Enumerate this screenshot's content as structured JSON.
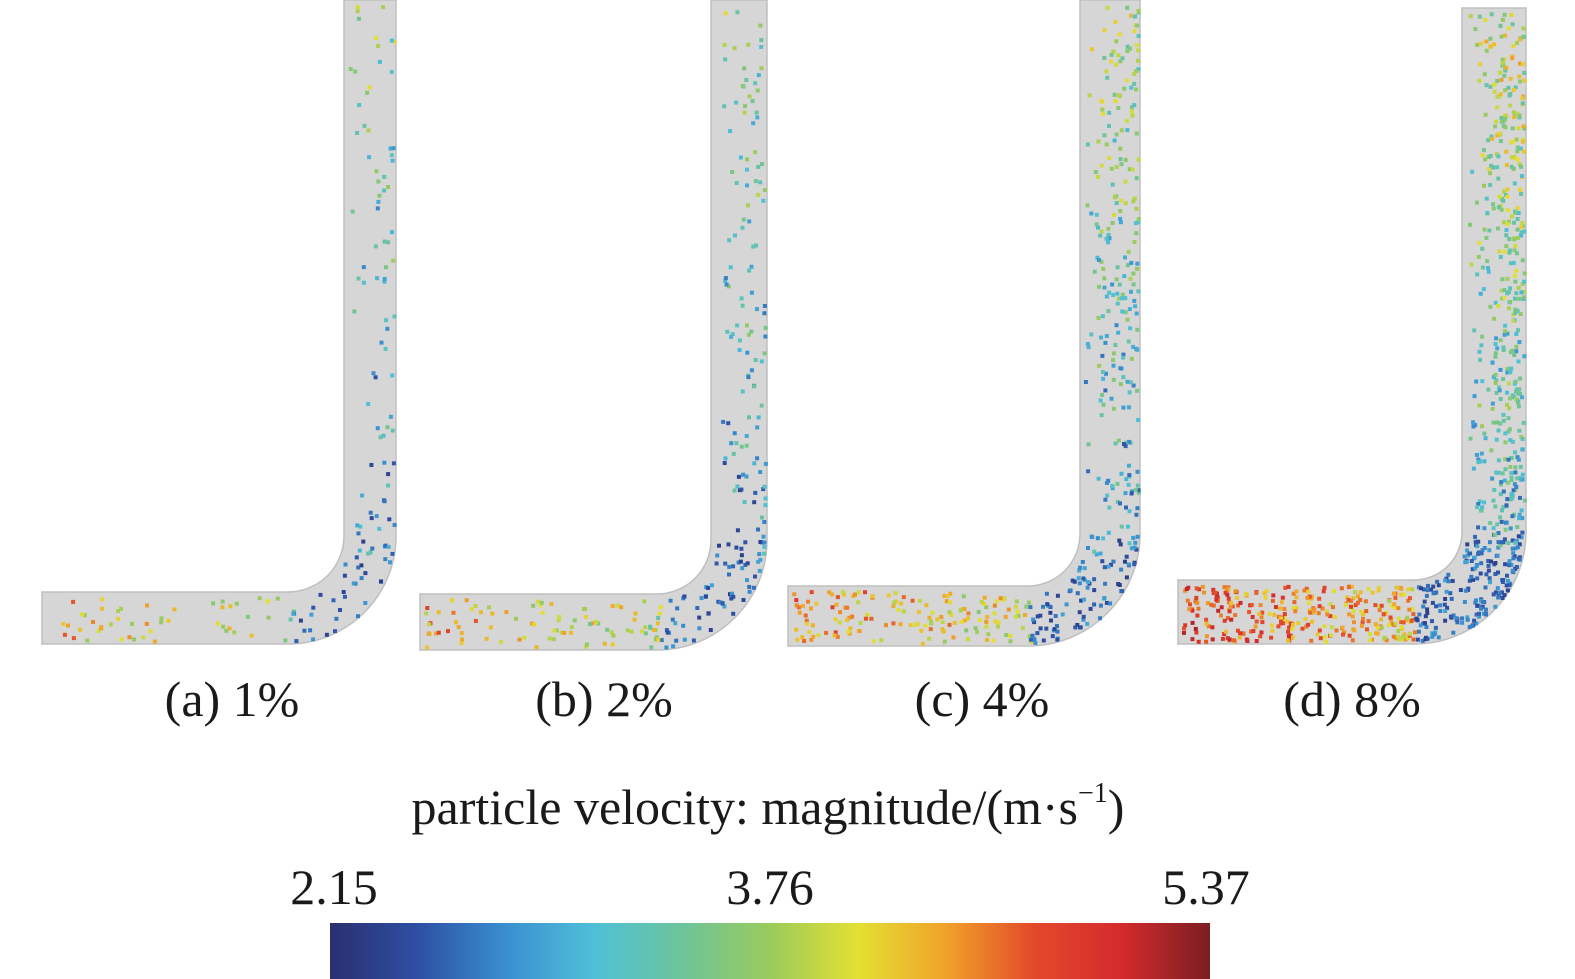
{
  "panels": [
    {
      "label": "(a) 1%",
      "concentration_pct": 1
    },
    {
      "label": "(b) 2%",
      "concentration_pct": 2
    },
    {
      "label": "(c) 4%",
      "concentration_pct": 4
    },
    {
      "label": "(d) 8%",
      "concentration_pct": 8
    }
  ],
  "legend": {
    "title_main": "particle velocity: magnitude/(m·s",
    "title_sup": "−1",
    "title_close": ")",
    "min": "2.15",
    "mid": "3.76",
    "max": "5.37",
    "colormap": [
      "#2a2f6e",
      "#2e4fa3",
      "#3a8fd0",
      "#4fc0d8",
      "#6cc49a",
      "#9acb5c",
      "#e4e033",
      "#f0a22a",
      "#e3492a",
      "#d42a2c",
      "#7a1e22"
    ]
  },
  "colors": {
    "pipe_fill": "#d6d6d6",
    "pipe_shade": "#bfbfbf"
  }
}
